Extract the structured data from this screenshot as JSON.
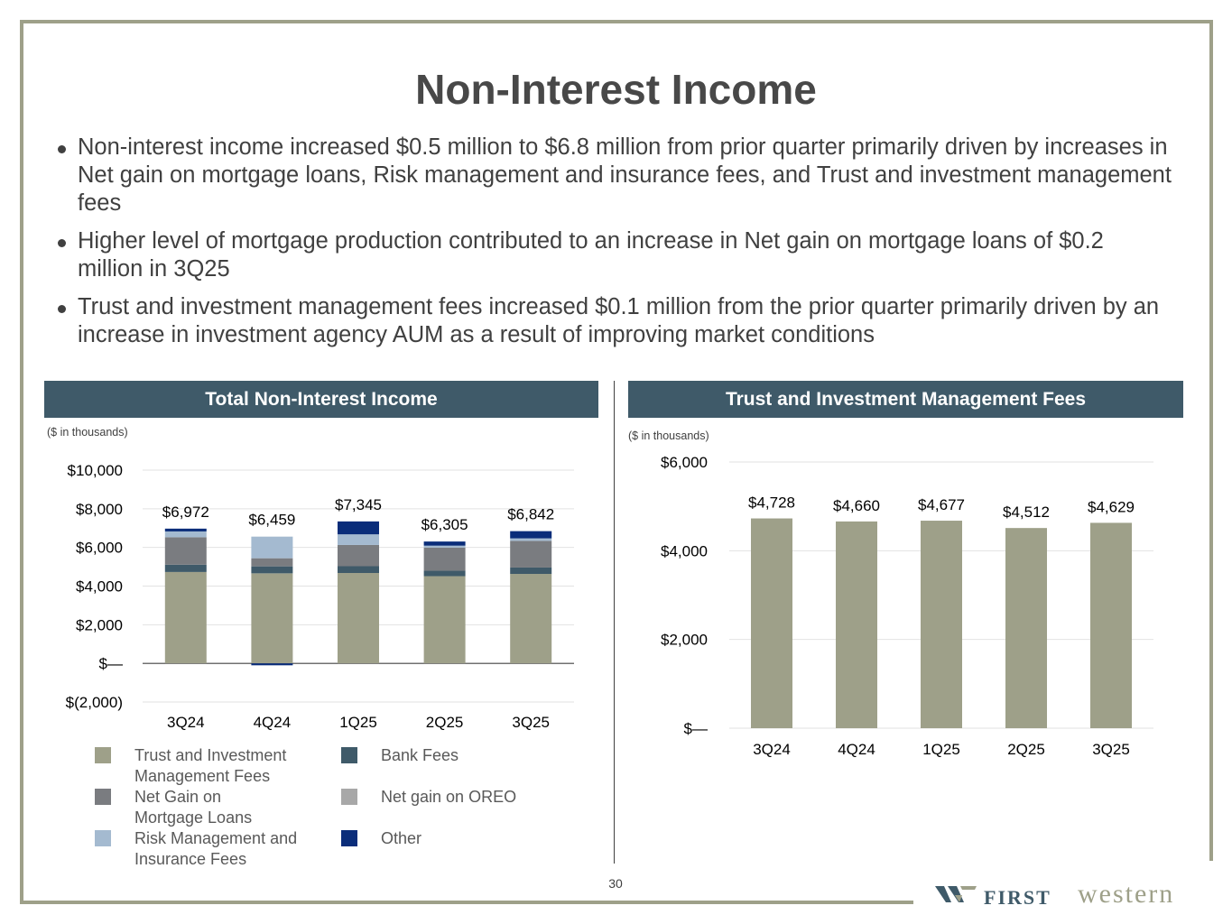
{
  "slide": {
    "title": "Non-Interest Income",
    "bullets": [
      "Non-interest income increased $0.5 million to $6.8 million from prior quarter primarily driven by increases in Net gain on mortgage loans, Risk management and insurance fees, and Trust and investment management fees",
      "Higher level of mortgage production contributed to an increase in Net gain on mortgage loans of $0.2 million in 3Q25",
      "Trust and investment management fees increased $0.1 million from the prior quarter primarily driven by an increase in investment agency AUM as a result of improving market conditions"
    ],
    "page_number": "30",
    "logo": {
      "first": "FIRST",
      "western": "western"
    }
  },
  "colors": {
    "trust": "#9ea089",
    "bank": "#3f5a69",
    "mortgage": "#7a7c80",
    "oreo": "#a8a8a8",
    "risk": "#a4bad0",
    "other": "#0a2d7a",
    "header": "#3f5a69"
  },
  "chart_data": [
    {
      "type": "bar",
      "stacked": true,
      "title": "Total Non-Interest Income",
      "units_note": "($ in thousands)",
      "categories": [
        "3Q24",
        "4Q24",
        "1Q25",
        "2Q25",
        "3Q25"
      ],
      "totals": [
        "$6,972",
        "$6,459",
        "$7,345",
        "$6,305",
        "$6,842"
      ],
      "ylim": [
        -2000,
        10000
      ],
      "yticks": [
        10000,
        8000,
        6000,
        4000,
        2000,
        0,
        -2000
      ],
      "ytick_labels": [
        "$10,000",
        "$8,000",
        "$6,000",
        "$4,000",
        "$2,000",
        "$—",
        "$(2,000)"
      ],
      "grid": true,
      "legend_position": "bottom",
      "series": [
        {
          "name": "Trust and Investment Management Fees",
          "color_key": "trust",
          "values": [
            4728,
            4660,
            4677,
            4512,
            4629
          ]
        },
        {
          "name": "Bank Fees",
          "color_key": "bank",
          "values": [
            380,
            360,
            350,
            280,
            330
          ]
        },
        {
          "name": "Net Gain on Mortgage Loans",
          "color_key": "mortgage",
          "values": [
            1420,
            420,
            1100,
            1200,
            1380
          ]
        },
        {
          "name": "Net gain on OREO",
          "color_key": "oreo",
          "values": [
            0,
            0,
            0,
            0,
            0
          ]
        },
        {
          "name": "Risk Management and Insurance Fees",
          "color_key": "risk",
          "values": [
            300,
            1119,
            550,
            100,
            130
          ]
        },
        {
          "name": "Other",
          "color_key": "other",
          "values": [
            144,
            -100,
            668,
            213,
            373
          ]
        }
      ]
    },
    {
      "type": "bar",
      "title": "Trust and Investment Management Fees",
      "units_note": "($ in thousands)",
      "categories": [
        "3Q24",
        "4Q24",
        "1Q25",
        "2Q25",
        "3Q25"
      ],
      "values": [
        4728,
        4660,
        4677,
        4512,
        4629
      ],
      "value_labels": [
        "$4,728",
        "$4,660",
        "$4,677",
        "$4,512",
        "$4,629"
      ],
      "ylim": [
        0,
        6000
      ],
      "yticks": [
        6000,
        4000,
        2000,
        0
      ],
      "ytick_labels": [
        "$6,000",
        "$4,000",
        "$2,000",
        "$—"
      ],
      "grid": true,
      "color_key": "trust"
    }
  ]
}
